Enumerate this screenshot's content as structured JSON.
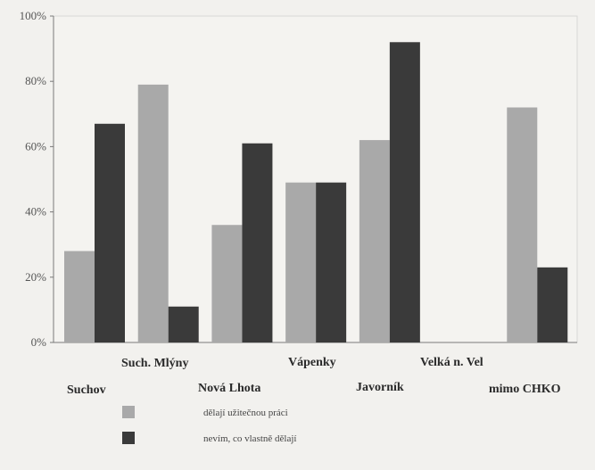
{
  "chart_data": {
    "type": "bar",
    "categories": [
      "Suchov",
      "Such. Mlýny",
      "Nová Lhota",
      "Vápenky",
      "Javorník",
      "Velká n. Vel",
      "mimo CHKO"
    ],
    "series": [
      {
        "name": "dělají užitečnou práci",
        "color": "#a9a9a9",
        "values": [
          28,
          79,
          36,
          49,
          62,
          null,
          72
        ]
      },
      {
        "name": "nevím, co vlastně dělají",
        "color": "#3a3a3a",
        "values": [
          67,
          11,
          61,
          49,
          92,
          null,
          23
        ]
      }
    ],
    "ylim": [
      0,
      100
    ],
    "yticks": [
      "0%",
      "20%",
      "40%",
      "60%",
      "80%",
      "100%"
    ],
    "grid": false,
    "legend_position": "bottom-center"
  }
}
